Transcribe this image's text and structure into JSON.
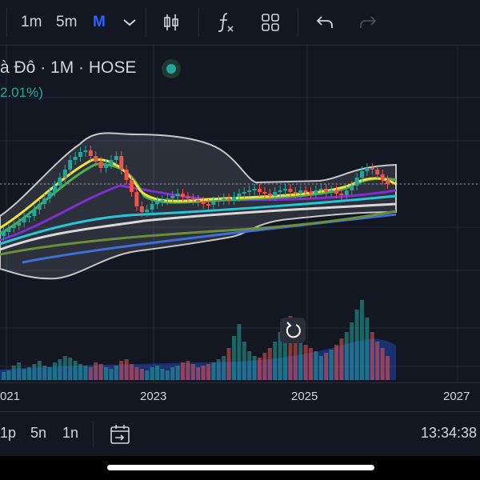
{
  "toolbar": {
    "intervals": [
      "1m",
      "5m",
      "M"
    ],
    "active_interval": "M",
    "icons": [
      "chevron-down-icon",
      "candles-icon",
      "indicators-icon",
      "layout-icon",
      "undo-icon",
      "redo-icon"
    ]
  },
  "symbol": {
    "title": "à Đô · 1M · HOSE",
    "change": "2.01%)",
    "status_color": "#26a69a"
  },
  "chart_data": {
    "type": "candlestick",
    "x_tick_labels": [
      "021",
      "2023",
      "2025",
      "2027"
    ],
    "overlays": [
      "bollinger-bands",
      "moving-averages",
      "volume"
    ],
    "grid": true,
    "colors": {
      "up": "#26a69a",
      "down": "#ef5350",
      "bollinger_fill": "rgba(160,165,180,0.18)",
      "ma_yellow": "#f0e040",
      "ma_green": "#4caf50",
      "ma_purple": "#7e2fd0",
      "ma_cyan": "#26c6da",
      "ma_white": "#d8d8d8",
      "ma_olive": "#6b8e3a",
      "ma_blue": "#3f6fd8"
    }
  },
  "bottom_bar": {
    "ranges": [
      "1p",
      "5n",
      "1n"
    ],
    "clock": "13:34:38"
  },
  "accent": "#2962ff"
}
